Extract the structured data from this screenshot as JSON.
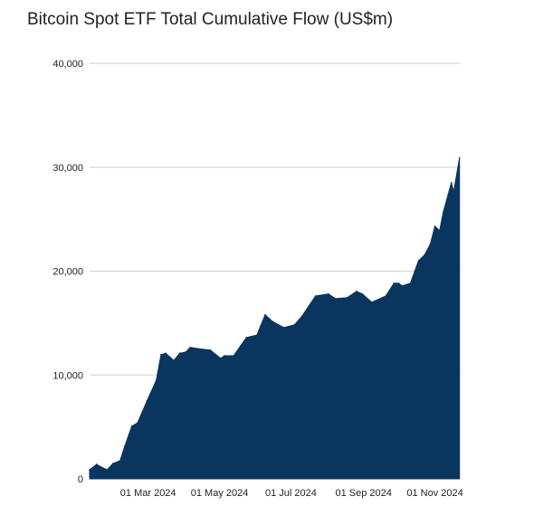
{
  "chart_data": {
    "type": "area",
    "title": "Bitcoin Spot ETF Total Cumulative Flow (US$m)",
    "xlabel": "",
    "ylabel": "",
    "xlim": [
      "2024-01-11",
      "2024-11-23"
    ],
    "ylim": [
      0,
      40000
    ],
    "grid": true,
    "legend": "none",
    "color": "#0a355f",
    "y_ticks": [
      {
        "value": 0,
        "label": "0"
      },
      {
        "value": 10000,
        "label": "10,000"
      },
      {
        "value": 20000,
        "label": "20,000"
      },
      {
        "value": 30000,
        "label": "30,000"
      },
      {
        "value": 40000,
        "label": "40,000"
      }
    ],
    "x_ticks": [
      {
        "date": "2024-03-01",
        "label": "01 Mar 2024"
      },
      {
        "date": "2024-05-01",
        "label": "01 May 2024"
      },
      {
        "date": "2024-07-01",
        "label": "01 Jul 2024"
      },
      {
        "date": "2024-09-01",
        "label": "01 Sep 2024"
      },
      {
        "date": "2024-11-01",
        "label": "01 Nov 2024"
      }
    ],
    "points": [
      [
        "2024-01-11",
        870
      ],
      [
        "2024-01-17",
        1400
      ],
      [
        "2024-01-21",
        1130
      ],
      [
        "2024-01-26",
        870
      ],
      [
        "2024-01-31",
        1480
      ],
      [
        "2024-02-06",
        1740
      ],
      [
        "2024-02-10",
        3140
      ],
      [
        "2024-02-16",
        5060
      ],
      [
        "2024-02-21",
        5400
      ],
      [
        "2024-02-29",
        7500
      ],
      [
        "2024-03-08",
        9500
      ],
      [
        "2024-03-12",
        11950
      ],
      [
        "2024-03-16",
        12100
      ],
      [
        "2024-03-23",
        11400
      ],
      [
        "2024-03-28",
        12100
      ],
      [
        "2024-04-02",
        12200
      ],
      [
        "2024-04-06",
        12650
      ],
      [
        "2024-04-12",
        12550
      ],
      [
        "2024-04-23",
        12400
      ],
      [
        "2024-05-02",
        11600
      ],
      [
        "2024-05-05",
        11850
      ],
      [
        "2024-05-13",
        11850
      ],
      [
        "2024-05-19",
        12800
      ],
      [
        "2024-05-24",
        13600
      ],
      [
        "2024-06-02",
        13850
      ],
      [
        "2024-06-05",
        14700
      ],
      [
        "2024-06-09",
        15800
      ],
      [
        "2024-06-15",
        15170
      ],
      [
        "2024-06-25",
        14560
      ],
      [
        "2024-07-04",
        14820
      ],
      [
        "2024-07-10",
        15600
      ],
      [
        "2024-07-22",
        17600
      ],
      [
        "2024-08-02",
        17800
      ],
      [
        "2024-08-08",
        17350
      ],
      [
        "2024-08-18",
        17440
      ],
      [
        "2024-08-26",
        18050
      ],
      [
        "2024-08-31",
        17800
      ],
      [
        "2024-09-08",
        17000
      ],
      [
        "2024-09-20",
        17600
      ],
      [
        "2024-09-27",
        18830
      ],
      [
        "2024-10-01",
        18830
      ],
      [
        "2024-10-04",
        18570
      ],
      [
        "2024-10-11",
        18830
      ],
      [
        "2024-10-18",
        21000
      ],
      [
        "2024-10-23",
        21530
      ],
      [
        "2024-10-28",
        22580
      ],
      [
        "2024-11-01",
        24320
      ],
      [
        "2024-11-05",
        23890
      ],
      [
        "2024-11-08",
        25630
      ],
      [
        "2024-11-15",
        28510
      ],
      [
        "2024-11-17",
        27640
      ],
      [
        "2024-11-22",
        30900
      ]
    ]
  }
}
